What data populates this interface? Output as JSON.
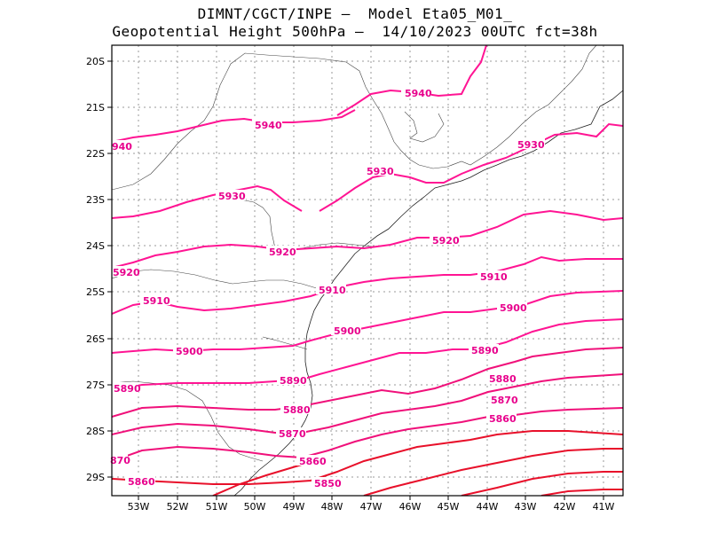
{
  "title": {
    "line1": "DIMNT/CGCT/INPE –  Model Eta05_M01_",
    "line2": "Geopotential Height 500hPa –  14/10/2023 00UTC fct=38h"
  },
  "map": {
    "lon_range": [
      -53.7,
      -40.5
    ],
    "lat_range": [
      -29.4,
      -19.6
    ],
    "x_ticks": [
      "53W",
      "52W",
      "51W",
      "50W",
      "49W",
      "48W",
      "47W",
      "46W",
      "45W",
      "44W",
      "43W",
      "42W",
      "41W"
    ],
    "y_ticks": [
      "20S",
      "21S",
      "22S",
      "23S",
      "24S",
      "25S",
      "26S",
      "27S",
      "28S",
      "29S"
    ],
    "grid": true,
    "contour_colors": {
      "high": "#ff1493",
      "low": "#e8102a"
    }
  },
  "contour_labels": [
    "5940",
    "5940",
    "940",
    "5930",
    "5930",
    "5930",
    "5920",
    "5920",
    "5920",
    "5910",
    "5910",
    "5900",
    "5900",
    "5890",
    "5890",
    "5880",
    "5880",
    "5870",
    "5870",
    "5860",
    "5860",
    "870",
    "5850",
    "5890"
  ]
}
